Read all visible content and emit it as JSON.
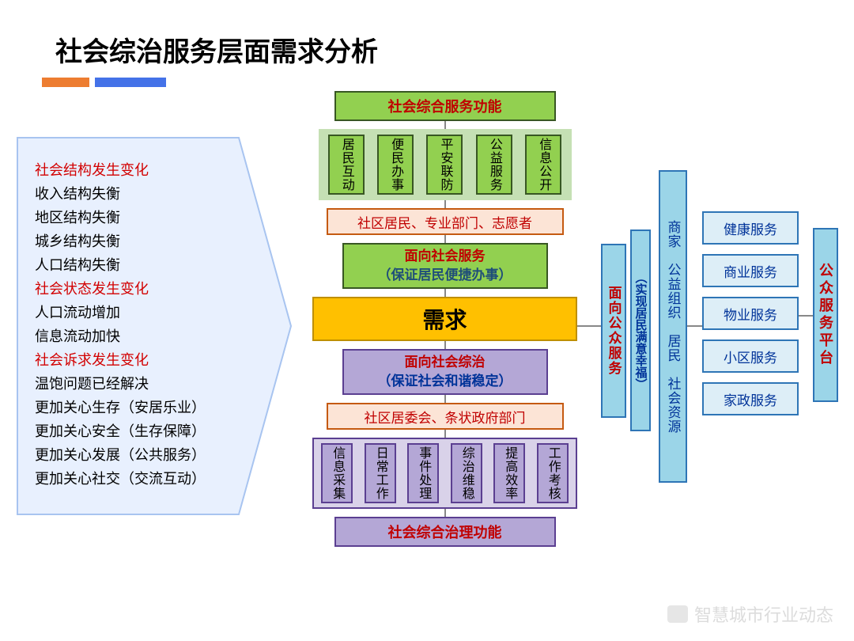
{
  "title": "社会综治服务层面需求分析",
  "colors": {
    "bar_orange": "#ed7d31",
    "bar_blue": "#4472e8",
    "arrow_fill": "#e8f0fe",
    "arrow_stroke": "#a8c4f0",
    "green_head": "#92d050",
    "green_row": "#c5e0b4",
    "green_border": "#385723",
    "pink": "#fce4d6",
    "pink_border": "#c55a11",
    "demand_fill": "#ffc000",
    "demand_border": "#bf8f00",
    "purple_head": "#b4a7d6",
    "purple_row": "#d9d2e9",
    "purple_border": "#5b3f91",
    "cyan_head": "#9bd5e8",
    "cyan_row": "#ddeef7",
    "cyan_border": "#2e75b6",
    "red_text": "#c00000",
    "blue_text": "#003399"
  },
  "left_list": [
    {
      "text": "社会结构发生变化",
      "red": true
    },
    {
      "text": "收入结构失衡",
      "red": false
    },
    {
      "text": "地区结构失衡",
      "red": false
    },
    {
      "text": "城乡结构失衡",
      "red": false
    },
    {
      "text": "人口结构失衡",
      "red": false
    },
    {
      "text": "社会状态发生变化",
      "red": true
    },
    {
      "text": "人口流动增加",
      "red": false
    },
    {
      "text": "信息流动加快",
      "red": false
    },
    {
      "text": "社会诉求发生变化",
      "red": true
    },
    {
      "text": "温饱问题已经解决",
      "red": false
    },
    {
      "text": "更加关心生存（安居乐业）",
      "red": false
    },
    {
      "text": "更加关心安全（生存保障）",
      "red": false
    },
    {
      "text": "更加关心发展（公共服务）",
      "red": false
    },
    {
      "text": "更加关心社交（交流互动）",
      "red": false
    }
  ],
  "top": {
    "header": "社会综合服务功能",
    "items": [
      "居民互动",
      "便民办事",
      "平安联防",
      "公益服务",
      "信息公开"
    ],
    "actors": "社区居民、专业部门、志愿者",
    "face_title": "面向社会服务",
    "face_sub": "（保证居民便捷办事）"
  },
  "demand": "需求",
  "bottom": {
    "face_title": "面向社会综治",
    "face_sub": "（保证社会和谐稳定）",
    "actors": "社区居委会、条状政府部门",
    "items": [
      "信息采集",
      "日常工作",
      "事件处理",
      "综治维稳",
      "提高效率",
      "工作考核"
    ],
    "header": "社会综合治理功能"
  },
  "right": {
    "col1_title": "面向公众服务",
    "col1_sub": "（实现居民满意幸福）",
    "col2": "商家　公益组织　居民　社会资源",
    "services": [
      "健康服务",
      "商业服务",
      "物业服务",
      "小区服务",
      "家政服务"
    ],
    "platform": "公众服务平台"
  },
  "watermark": "智慧城市行业动态"
}
